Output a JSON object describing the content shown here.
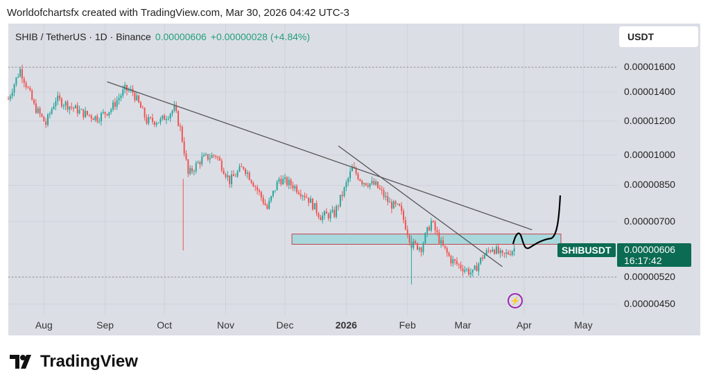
{
  "header": "Worldofchartsfx created with TradingView.com, Mar 30, 2026 04:42 UTC-3",
  "legend": {
    "symbol": "SHIB / TetherUS · 1D · Binance",
    "price": "0.00000606",
    "change": "+0.00000028 (+4.84%)"
  },
  "currency": "USDT",
  "last": {
    "symbol": "SHIBUSDT",
    "price": "0.00000606",
    "countdown": "16:17:42"
  },
  "brand": "TradingView",
  "colors": {
    "up": "#26a69a",
    "down": "#ef5350",
    "accent": "#0b6b53"
  },
  "chart_data": {
    "type": "candlestick",
    "scale": "log",
    "yticks": [
      "0.00001600",
      "0.00001400",
      "0.00001200",
      "0.00001000",
      "0.00000850",
      "0.00000700",
      "0.00000520",
      "0.00000450"
    ],
    "ytick_values": [
      1600,
      1400,
      1200,
      1000,
      850,
      700,
      520,
      450
    ],
    "y_unit": "1e-8 USDT",
    "xticks": [
      "Aug",
      "Sep",
      "Oct",
      "Nov",
      "Dec",
      "2026",
      "Feb",
      "Mar",
      "Apr",
      "May"
    ],
    "xtick_days": [
      18,
      49,
      79,
      110,
      140,
      171,
      202,
      230,
      261,
      291
    ],
    "start": "Jul 14 2025",
    "close_keypoints": [
      [
        0,
        1350
      ],
      [
        6,
        1580
      ],
      [
        13,
        1300
      ],
      [
        19,
        1180
      ],
      [
        24,
        1350
      ],
      [
        31,
        1300
      ],
      [
        38,
        1250
      ],
      [
        45,
        1220
      ],
      [
        52,
        1280
      ],
      [
        59,
        1420
      ],
      [
        63,
        1400
      ],
      [
        70,
        1200
      ],
      [
        77,
        1200
      ],
      [
        84,
        1280
      ],
      [
        87,
        1150
      ],
      [
        91,
        900
      ],
      [
        98,
        980
      ],
      [
        105,
        1000
      ],
      [
        112,
        870
      ],
      [
        119,
        940
      ],
      [
        126,
        830
      ],
      [
        131,
        750
      ],
      [
        137,
        880
      ],
      [
        144,
        850
      ],
      [
        151,
        800
      ],
      [
        158,
        720
      ],
      [
        165,
        730
      ],
      [
        170,
        830
      ],
      [
        174,
        930
      ],
      [
        179,
        870
      ],
      [
        186,
        850
      ],
      [
        193,
        770
      ],
      [
        198,
        750
      ],
      [
        204,
        620
      ],
      [
        209,
        610
      ],
      [
        214,
        700
      ],
      [
        219,
        620
      ],
      [
        224,
        570
      ],
      [
        229,
        550
      ],
      [
        235,
        530
      ],
      [
        240,
        580
      ],
      [
        245,
        610
      ],
      [
        250,
        580
      ],
      [
        256,
        606
      ]
    ],
    "trendlines": [
      [
        [
          50,
          1480
        ],
        [
          265,
          670
        ]
      ],
      [
        [
          167,
          1050
        ],
        [
          250,
          550
        ]
      ]
    ],
    "zone": [
      620,
      655
    ],
    "horizontal_levels": [
      1600,
      520
    ]
  }
}
